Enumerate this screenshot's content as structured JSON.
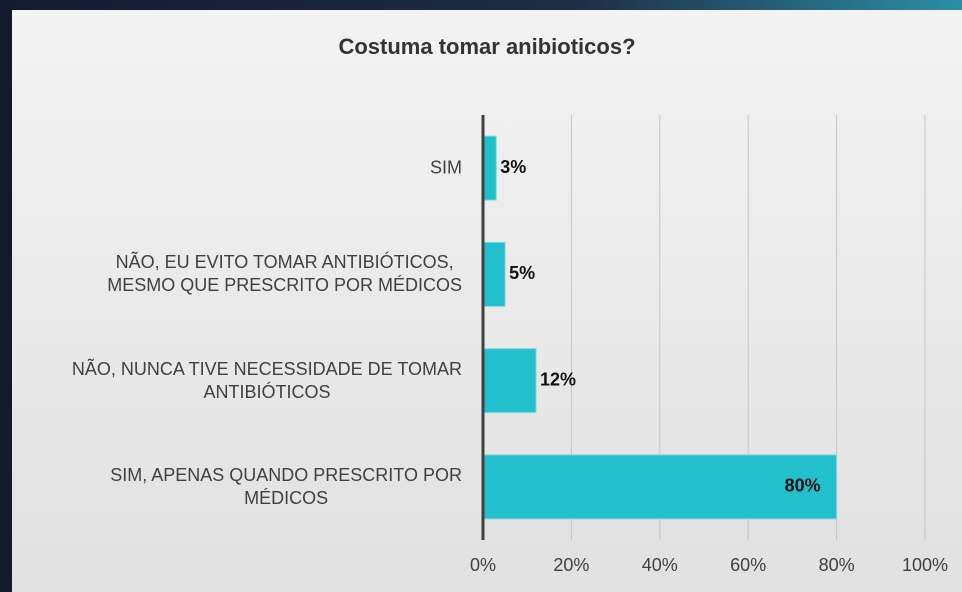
{
  "chart_data": {
    "type": "bar",
    "orientation": "horizontal",
    "title": "Costuma tomar anibioticos?",
    "categories": [
      "SIM",
      "NÃO, EU EVITO TOMAR ANTIBIÓTICOS,\nMESMO QUE PRESCRITO POR MÉDICOS",
      "NÃO, NUNCA TIVE NECESSIDADE DE TOMAR\nANTIBIÓTICOS",
      "SIM, APENAS QUANDO PRESCRITO POR\nMÉDICOS"
    ],
    "values": [
      3,
      5,
      12,
      80
    ],
    "value_labels": [
      "3%",
      "5%",
      "12%",
      "80%"
    ],
    "color": "#22bfcc",
    "xlim": [
      0,
      100
    ],
    "xticks": [
      {
        "value": 0,
        "label": "0%"
      },
      {
        "value": 20,
        "label": "20%"
      },
      {
        "value": 40,
        "label": "40%"
      },
      {
        "value": 60,
        "label": "60%"
      },
      {
        "value": 80,
        "label": "80%"
      },
      {
        "value": 100,
        "label": "100%"
      }
    ],
    "grid": true
  }
}
